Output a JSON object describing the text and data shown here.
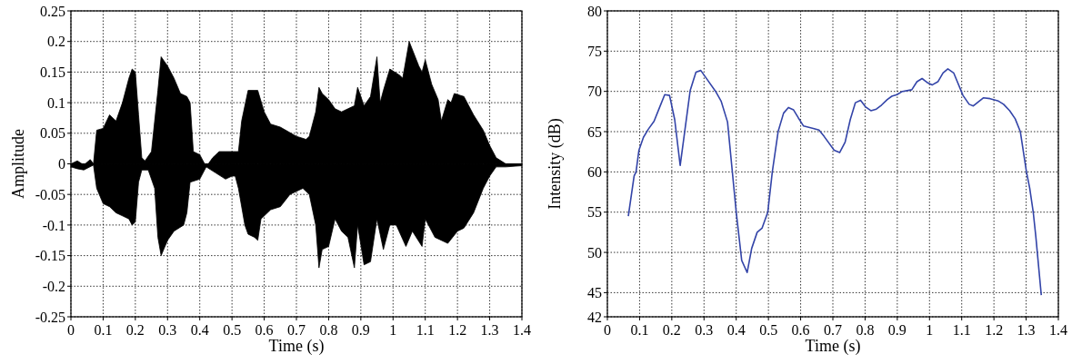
{
  "chart_data": [
    {
      "type": "area",
      "xlabel": "Time (s)",
      "ylabel": "Amplitude",
      "xlim": [
        0,
        1.4
      ],
      "ylim": [
        -0.25,
        0.25
      ],
      "xticks": [
        0,
        0.1,
        0.2,
        0.3,
        0.4,
        0.5,
        0.6,
        0.7,
        0.8,
        0.9,
        1,
        1.1,
        1.2,
        1.3,
        1.4
      ],
      "yticks": [
        -0.25,
        -0.2,
        -0.15,
        -0.1,
        -0.05,
        0,
        0.05,
        0.1,
        0.15,
        0.2,
        0.25
      ],
      "grid": true,
      "series": [
        {
          "color": "#000000",
          "x": [
            0,
            0.02,
            0.04,
            0.06,
            0.07,
            0.08,
            0.1,
            0.12,
            0.14,
            0.16,
            0.18,
            0.19,
            0.2,
            0.21,
            0.22,
            0.23,
            0.25,
            0.27,
            0.28,
            0.3,
            0.32,
            0.34,
            0.36,
            0.37,
            0.38,
            0.4,
            0.42,
            0.44,
            0.46,
            0.48,
            0.5,
            0.52,
            0.53,
            0.55,
            0.57,
            0.58,
            0.6,
            0.62,
            0.65,
            0.7,
            0.73,
            0.74,
            0.76,
            0.77,
            0.78,
            0.8,
            0.82,
            0.84,
            0.86,
            0.88,
            0.89,
            0.91,
            0.93,
            0.95,
            0.96,
            0.97,
            0.99,
            1.02,
            1.03,
            1.05,
            1.08,
            1.09,
            1.1,
            1.12,
            1.14,
            1.15,
            1.17,
            1.18,
            1.19,
            1.22,
            1.25,
            1.28,
            1.3,
            1.32,
            1.35,
            1.4
          ],
          "values": [
            0,
            0.005,
            -0.002,
            0.007,
            0,
            0.055,
            0.058,
            0.08,
            0.07,
            0.1,
            0.14,
            0.155,
            0.15,
            0.08,
            0.01,
            0.005,
            0.02,
            0.12,
            0.175,
            0.16,
            0.14,
            0.115,
            0.11,
            0.1,
            0.02,
            0.015,
            -0.005,
            0.01,
            0.02,
            0.02,
            0.02,
            0.02,
            0.07,
            0.12,
            0.12,
            0.12,
            0.085,
            0.065,
            0.06,
            0.045,
            0.04,
            0.045,
            0.085,
            0.125,
            0.115,
            0.105,
            0.09,
            0.085,
            0.09,
            0.095,
            0.125,
            0.095,
            0.11,
            0.175,
            0.1,
            0.12,
            0.155,
            0.145,
            0.14,
            0.2,
            0.16,
            0.15,
            0.17,
            0.13,
            0.105,
            0.07,
            0.105,
            0.1,
            0.115,
            0.11,
            0.08,
            0.055,
            0.03,
            0.01,
            0,
            0
          ]
        },
        {
          "color": "#000000",
          "x": [
            0,
            0.02,
            0.04,
            0.07,
            0.08,
            0.1,
            0.12,
            0.14,
            0.16,
            0.18,
            0.19,
            0.2,
            0.21,
            0.22,
            0.24,
            0.26,
            0.27,
            0.28,
            0.3,
            0.32,
            0.35,
            0.36,
            0.37,
            0.4,
            0.42,
            0.45,
            0.48,
            0.5,
            0.51,
            0.52,
            0.54,
            0.55,
            0.57,
            0.58,
            0.59,
            0.62,
            0.65,
            0.68,
            0.7,
            0.72,
            0.74,
            0.76,
            0.77,
            0.78,
            0.8,
            0.82,
            0.84,
            0.86,
            0.88,
            0.89,
            0.91,
            0.93,
            0.95,
            0.97,
            0.99,
            1.01,
            1.04,
            1.06,
            1.09,
            1.1,
            1.13,
            1.17,
            1.2,
            1.22,
            1.25,
            1.28,
            1.3,
            1.32,
            1.35,
            1.4
          ],
          "values": [
            -0.005,
            -0.008,
            -0.01,
            -0.002,
            -0.04,
            -0.065,
            -0.07,
            -0.08,
            -0.085,
            -0.09,
            -0.1,
            -0.095,
            -0.03,
            -0.01,
            -0.01,
            -0.04,
            -0.12,
            -0.15,
            -0.125,
            -0.11,
            -0.1,
            -0.08,
            -0.03,
            -0.025,
            -0.005,
            -0.015,
            -0.025,
            -0.02,
            -0.02,
            -0.04,
            -0.1,
            -0.115,
            -0.12,
            -0.125,
            -0.09,
            -0.075,
            -0.07,
            -0.05,
            -0.045,
            -0.04,
            -0.05,
            -0.1,
            -0.17,
            -0.14,
            -0.135,
            -0.09,
            -0.11,
            -0.12,
            -0.17,
            -0.1,
            -0.165,
            -0.16,
            -0.09,
            -0.14,
            -0.1,
            -0.1,
            -0.135,
            -0.11,
            -0.135,
            -0.09,
            -0.12,
            -0.13,
            -0.11,
            -0.105,
            -0.08,
            -0.04,
            -0.02,
            -0.005,
            -0.005,
            -0.003
          ]
        }
      ]
    },
    {
      "type": "line",
      "xlabel": "Time (s)",
      "ylabel": "Intensity (dB)",
      "xlim": [
        0,
        1.4
      ],
      "ylim": [
        42,
        80
      ],
      "xticks": [
        0,
        0.1,
        0.2,
        0.3,
        0.4,
        0.5,
        0.6,
        0.7,
        0.8,
        0.9,
        1,
        1.1,
        1.2,
        1.3,
        1.4
      ],
      "yticks": [
        42,
        45,
        50,
        55,
        60,
        65,
        70,
        75,
        80
      ],
      "grid": true,
      "series": [
        {
          "color": "#3344a8",
          "x": [
            0.065,
            0.083,
            0.089,
            0.098,
            0.112,
            0.127,
            0.145,
            0.162,
            0.178,
            0.193,
            0.209,
            0.226,
            0.24,
            0.257,
            0.275,
            0.29,
            0.306,
            0.336,
            0.353,
            0.373,
            0.4,
            0.417,
            0.434,
            0.448,
            0.465,
            0.48,
            0.498,
            0.512,
            0.53,
            0.547,
            0.562,
            0.578,
            0.593,
            0.609,
            0.639,
            0.657,
            0.673,
            0.704,
            0.721,
            0.738,
            0.754,
            0.77,
            0.786,
            0.801,
            0.818,
            0.835,
            0.851,
            0.869,
            0.883,
            0.899,
            0.916,
            0.945,
            0.961,
            0.977,
            0.993,
            1.008,
            1.026,
            1.042,
            1.057,
            1.075,
            1.104,
            1.123,
            1.136,
            1.167,
            1.188,
            1.214,
            1.23,
            1.249,
            1.266,
            1.282,
            1.301,
            1.311,
            1.322,
            1.33,
            1.347
          ],
          "values": [
            54.5,
            59.5,
            60,
            62.7,
            64.3,
            65.3,
            66.3,
            68,
            69.6,
            69.5,
            66.5,
            60.8,
            65,
            70.1,
            72.4,
            72.6,
            71.7,
            70,
            68.8,
            66.2,
            55,
            49,
            47.5,
            50.5,
            52.5,
            53,
            55,
            60,
            65,
            67.3,
            68,
            67.7,
            66.7,
            65.7,
            65.4,
            65.2,
            64.4,
            62.7,
            62.4,
            63.7,
            66.5,
            68.6,
            68.9,
            68.1,
            67.6,
            67.8,
            68.3,
            69,
            69.4,
            69.6,
            70,
            70.2,
            71.2,
            71.6,
            71.1,
            70.8,
            71.2,
            72.3,
            72.8,
            72.3,
            69.5,
            68.4,
            68.2,
            69.2,
            69.1,
            68.8,
            68.4,
            67.6,
            66.6,
            65,
            60,
            58,
            55,
            52,
            44.7
          ]
        }
      ]
    }
  ]
}
